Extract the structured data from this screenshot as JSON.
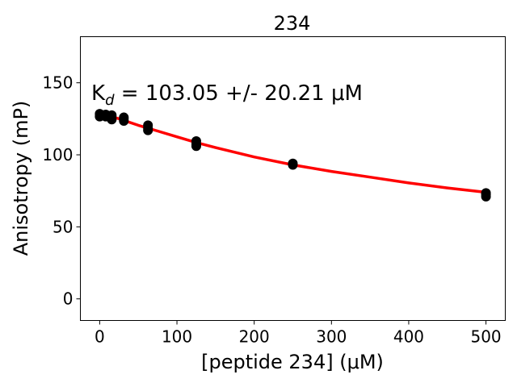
{
  "chart_data": {
    "type": "scatter",
    "title": "234",
    "xlabel": "[peptide 234] (μM)",
    "ylabel": "Anisotropy (mP)",
    "xlim": [
      -25,
      525
    ],
    "ylim": [
      -15,
      182
    ],
    "xticks": [
      0,
      100,
      200,
      300,
      400,
      500
    ],
    "yticks": [
      0,
      50,
      100,
      150
    ],
    "annotation": "K_d = 103.05 +/- 20.21 μM",
    "grid": false,
    "series": [
      {
        "kind": "points",
        "color": "#000000",
        "x": [
          0,
          0,
          0,
          7.8,
          7.8,
          7.8,
          15.6,
          15.6,
          15.6,
          31.25,
          31.25,
          31.25,
          62.5,
          62.5,
          62.5,
          125,
          125,
          125,
          250,
          250,
          500,
          500,
          500
        ],
        "y": [
          126.5,
          127.5,
          128.5,
          126.5,
          127.5,
          128,
          124.5,
          126,
          127.5,
          123.5,
          125,
          126,
          117,
          118.5,
          120.5,
          106,
          107.5,
          109.5,
          93,
          94,
          71,
          72.5,
          73.5
        ]
      },
      {
        "kind": "fit",
        "color": "#ff0000",
        "x": [
          0,
          25,
          50,
          75,
          100,
          125,
          150,
          200,
          250,
          300,
          350,
          400,
          450,
          500
        ],
        "y": [
          129,
          125,
          120.5,
          116.5,
          112.5,
          108.5,
          105,
          98.5,
          93,
          88.5,
          84.5,
          80.5,
          77,
          74
        ]
      }
    ]
  }
}
